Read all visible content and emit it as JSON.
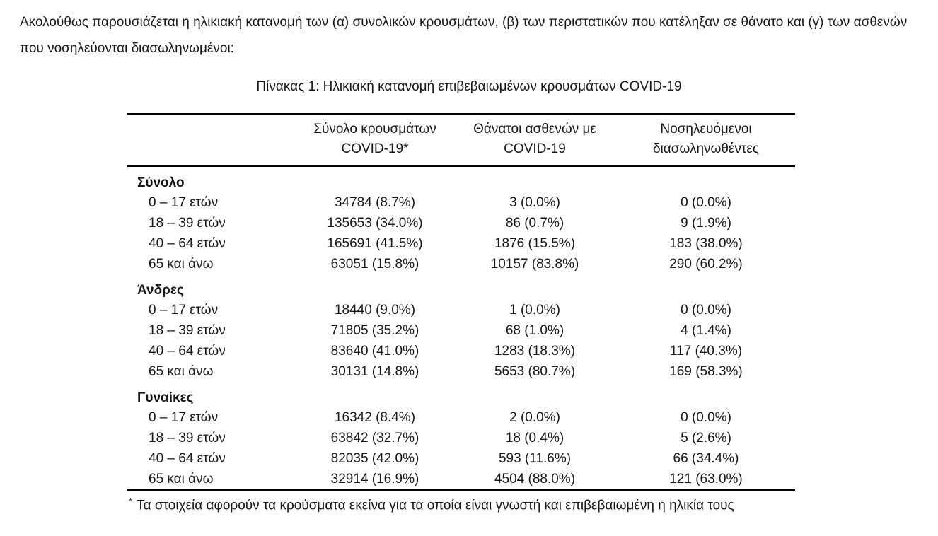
{
  "page": {
    "intro": "Ακολούθως παρουσιάζεται η ηλικιακή κατανομή των (α) συνολικών κρουσμάτων, (β) των περιστατικών που κατέληξαν σε θάνατο και (γ) των ασθενών που νοσηλεύονται διασωληνωμένοι:",
    "table_title": "Πίνακας 1: Ηλικιακή κατανομή επιβεβαιωμένων κρουσμάτων COVID-19",
    "footnote_marker": "*",
    "footnote": "Τα στοιχεία αφορούν τα κρούσματα εκείνα για τα οποία είναι γνωστή και επιβεβαιωμένη η ηλικία τους"
  },
  "table": {
    "columns": [
      {
        "line1": "",
        "line2": ""
      },
      {
        "line1": "Σύνολο κρουσμάτων",
        "line2": "COVID-19*"
      },
      {
        "line1": "Θάνατοι ασθενών με",
        "line2": "COVID-19"
      },
      {
        "line1": "Νοσηλευόμενοι",
        "line2": "διασωληνωθέντες"
      }
    ],
    "sections": [
      {
        "label": "Σύνολο",
        "rows": [
          {
            "label": "0 – 17 ετών",
            "cases": "34784 (8.7%)",
            "deaths": "3 (0.0%)",
            "intubated": "0 (0.0%)"
          },
          {
            "label": "18 – 39 ετών",
            "cases": "135653 (34.0%)",
            "deaths": "86 (0.7%)",
            "intubated": "9 (1.9%)"
          },
          {
            "label": "40 – 64 ετών",
            "cases": "165691 (41.5%)",
            "deaths": "1876 (15.5%)",
            "intubated": "183 (38.0%)"
          },
          {
            "label": "65 και άνω",
            "cases": "63051 (15.8%)",
            "deaths": "10157 (83.8%)",
            "intubated": "290 (60.2%)"
          }
        ]
      },
      {
        "label": "Άνδρες",
        "rows": [
          {
            "label": "0 – 17 ετών",
            "cases": "18440 (9.0%)",
            "deaths": "1 (0.0%)",
            "intubated": "0 (0.0%)"
          },
          {
            "label": "18 – 39 ετών",
            "cases": "71805 (35.2%)",
            "deaths": "68 (1.0%)",
            "intubated": "4 (1.4%)"
          },
          {
            "label": "40 – 64 ετών",
            "cases": "83640 (41.0%)",
            "deaths": "1283 (18.3%)",
            "intubated": "117 (40.3%)"
          },
          {
            "label": "65 και άνω",
            "cases": "30131 (14.8%)",
            "deaths": "5653 (80.7%)",
            "intubated": "169 (58.3%)"
          }
        ]
      },
      {
        "label": "Γυναίκες",
        "rows": [
          {
            "label": "0 – 17 ετών",
            "cases": "16342 (8.4%)",
            "deaths": "2 (0.0%)",
            "intubated": "0 (0.0%)"
          },
          {
            "label": "18 – 39 ετών",
            "cases": "63842 (32.7%)",
            "deaths": "18 (0.4%)",
            "intubated": "5 (2.6%)"
          },
          {
            "label": "40 – 64 ετών",
            "cases": "82035 (42.0%)",
            "deaths": "593 (11.6%)",
            "intubated": "66 (34.4%)"
          },
          {
            "label": "65 και άνω",
            "cases": "32914 (16.9%)",
            "deaths": "4504 (88.0%)",
            "intubated": "121 (63.0%)"
          }
        ]
      }
    ]
  }
}
